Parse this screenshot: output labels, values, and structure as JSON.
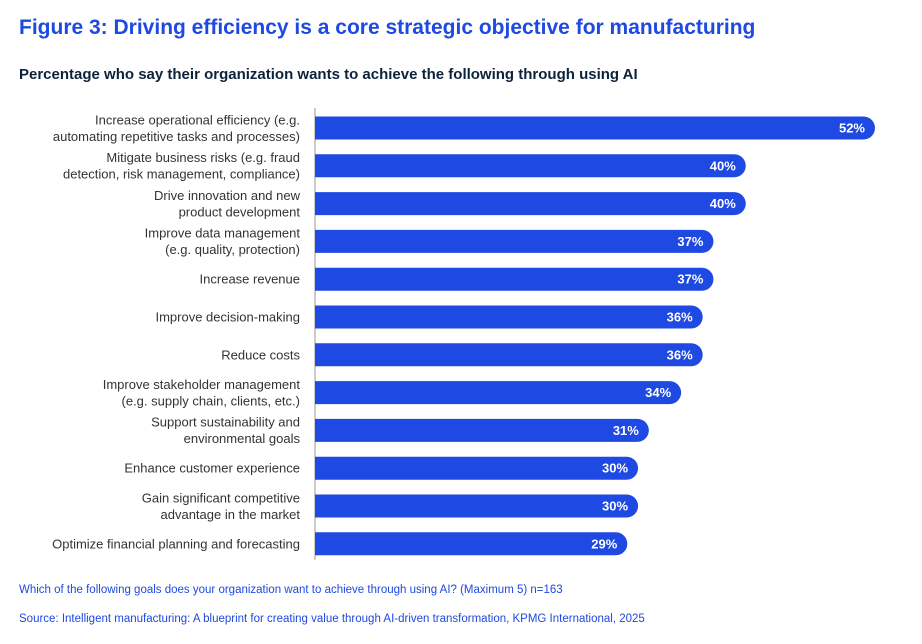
{
  "title": "Figure 3: Driving efficiency is a core strategic objective for manufacturing",
  "subtitle": "Percentage who say their organization wants to achieve the following through using AI",
  "footnote": "Which of the following goals does your organization want to achieve through using AI? (Maximum 5) n=163",
  "source": "Source: Intelligent manufacturing: A blueprint for creating value through AI-driven transformation, KPMG International, 2025",
  "colors": {
    "bar": "#1e49e2",
    "title": "#1e49e2",
    "subtitle": "#0c233c",
    "axis": "#999999"
  },
  "chart_data": {
    "type": "bar",
    "orientation": "horizontal",
    "unit": "%",
    "categories": [
      [
        "Increase operational efficiency (e.g.",
        "automating repetitive tasks and processes)"
      ],
      [
        "Mitigate business risks (e.g. fraud",
        "detection, risk management, compliance)"
      ],
      [
        "Drive innovation and new",
        "product development"
      ],
      [
        "Improve data management",
        "(e.g. quality, protection)"
      ],
      [
        "Increase revenue"
      ],
      [
        "Improve decision-making"
      ],
      [
        "Reduce costs"
      ],
      [
        "Improve stakeholder management",
        "(e.g. supply chain, clients, etc.)"
      ],
      [
        "Support sustainability and",
        "environmental goals"
      ],
      [
        "Enhance customer experience"
      ],
      [
        "Gain significant competitive",
        "advantage in the market"
      ],
      [
        "Optimize financial planning and forecasting"
      ]
    ],
    "values": [
      52,
      40,
      40,
      37,
      37,
      36,
      36,
      34,
      31,
      30,
      30,
      29
    ],
    "data_labels": [
      "52%",
      "40%",
      "40%",
      "37%",
      "37%",
      "36%",
      "36%",
      "34%",
      "31%",
      "30%",
      "30%",
      "29%"
    ]
  }
}
